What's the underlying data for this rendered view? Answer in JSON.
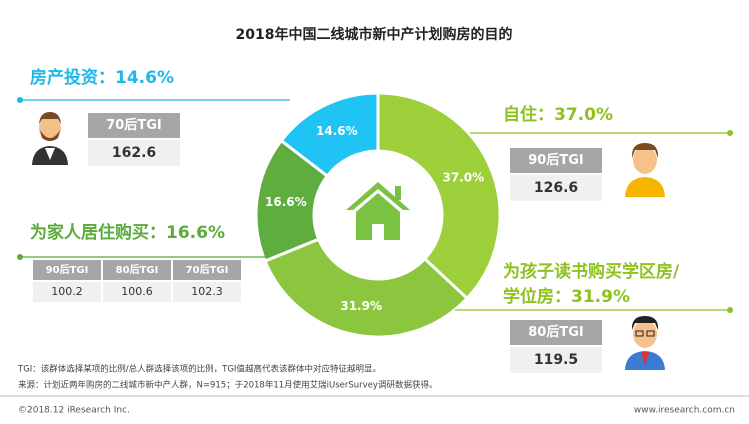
{
  "title": "2018年中国二线城市新中产计划购房的目的",
  "chart_data": {
    "type": "pie",
    "donut": true,
    "values": [
      37.0,
      31.9,
      16.6,
      14.6
    ],
    "value_labels": [
      "37.0%",
      "31.9%",
      "16.6%",
      "14.6%"
    ],
    "colors": [
      "#9dcf3a",
      "#8cc63f",
      "#5fac3f",
      "#20c4f4"
    ],
    "labels": [
      [
        "自住：37.0%"
      ],
      [
        "为孩子读书购买学区房/",
        "学位房：31.9%"
      ],
      [
        "为家人居住购买：16.6%"
      ],
      [
        "房产投资：14.6%"
      ]
    ],
    "label_colors": [
      "#8dc21f",
      "#8dc21f",
      "#5aab3c",
      "#21b8e8"
    ]
  },
  "tgi_tables": [
    {
      "headers": [
        "90后TGI"
      ],
      "values": [
        126.6
      ]
    },
    {
      "headers": [
        "80后TGI"
      ],
      "values": [
        119.5
      ]
    },
    {
      "headers": [
        "90后TGI",
        "80后TGI",
        "70后TGI"
      ],
      "values": [
        100.2,
        100.6,
        102.3
      ]
    },
    {
      "headers": [
        "70后TGI"
      ],
      "values": [
        162.6
      ]
    }
  ],
  "notes": [
    "TGI：该群体选择某项的比例/总人群选择该项的比例，TGI值越高代表该群体中对应特征越明显。",
    "来源：计划近两年购房的二线城市新中产人群，N=915；于2018年11月使用艾瑞iUserSurvey调研数据获得。"
  ],
  "footer": {
    "left": "©2018.12 iResearch Inc.",
    "right": "www.iresearch.com.cn"
  }
}
